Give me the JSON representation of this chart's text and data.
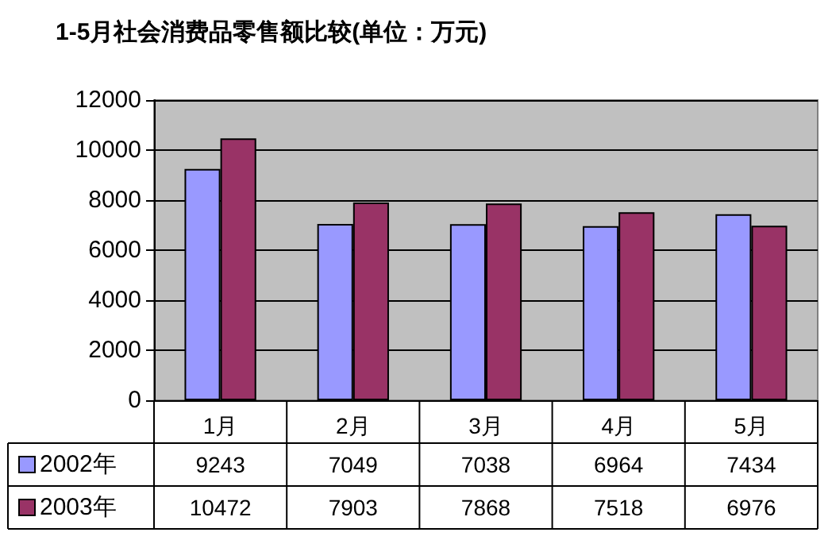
{
  "chart_data": {
    "type": "bar",
    "title": "1-5月社会消费品零售额比较(单位：万元)",
    "categories": [
      "1月",
      "2月",
      "3月",
      "4月",
      "5月"
    ],
    "series": [
      {
        "name": "2002年",
        "color": "#9999ff",
        "values": [
          9243,
          7049,
          7038,
          6964,
          7434
        ]
      },
      {
        "name": "2003年",
        "color": "#993366",
        "values": [
          10472,
          7903,
          7868,
          7518,
          6976
        ]
      }
    ],
    "ylim": [
      0,
      12000
    ],
    "yticks": [
      0,
      2000,
      4000,
      6000,
      8000,
      10000,
      12000
    ],
    "grid": "y",
    "data_labels": true,
    "legend": "bottom left"
  }
}
